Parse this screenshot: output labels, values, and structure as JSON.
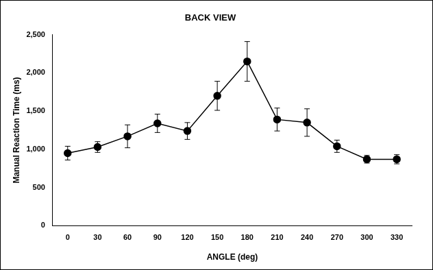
{
  "chart_data": {
    "type": "line",
    "title": "BACK VIEW",
    "x_label": "ANGLE (deg)",
    "y_label": "Manual Reaction Time (ms)",
    "categories": [
      "0",
      "30",
      "60",
      "90",
      "120",
      "150",
      "180",
      "210",
      "240",
      "270",
      "300",
      "330"
    ],
    "values": [
      950,
      1030,
      1170,
      1340,
      1240,
      1700,
      2150,
      1390,
      1350,
      1040,
      870,
      870
    ],
    "errors": [
      90,
      70,
      150,
      120,
      110,
      190,
      260,
      150,
      180,
      80,
      50,
      60
    ],
    "color": "#000000",
    "marker": "circle",
    "line_style": "solid",
    "ylim": [
      0,
      2500
    ],
    "yticks": [
      0,
      500,
      1000,
      1500,
      2000,
      2500
    ],
    "grid": false
  }
}
